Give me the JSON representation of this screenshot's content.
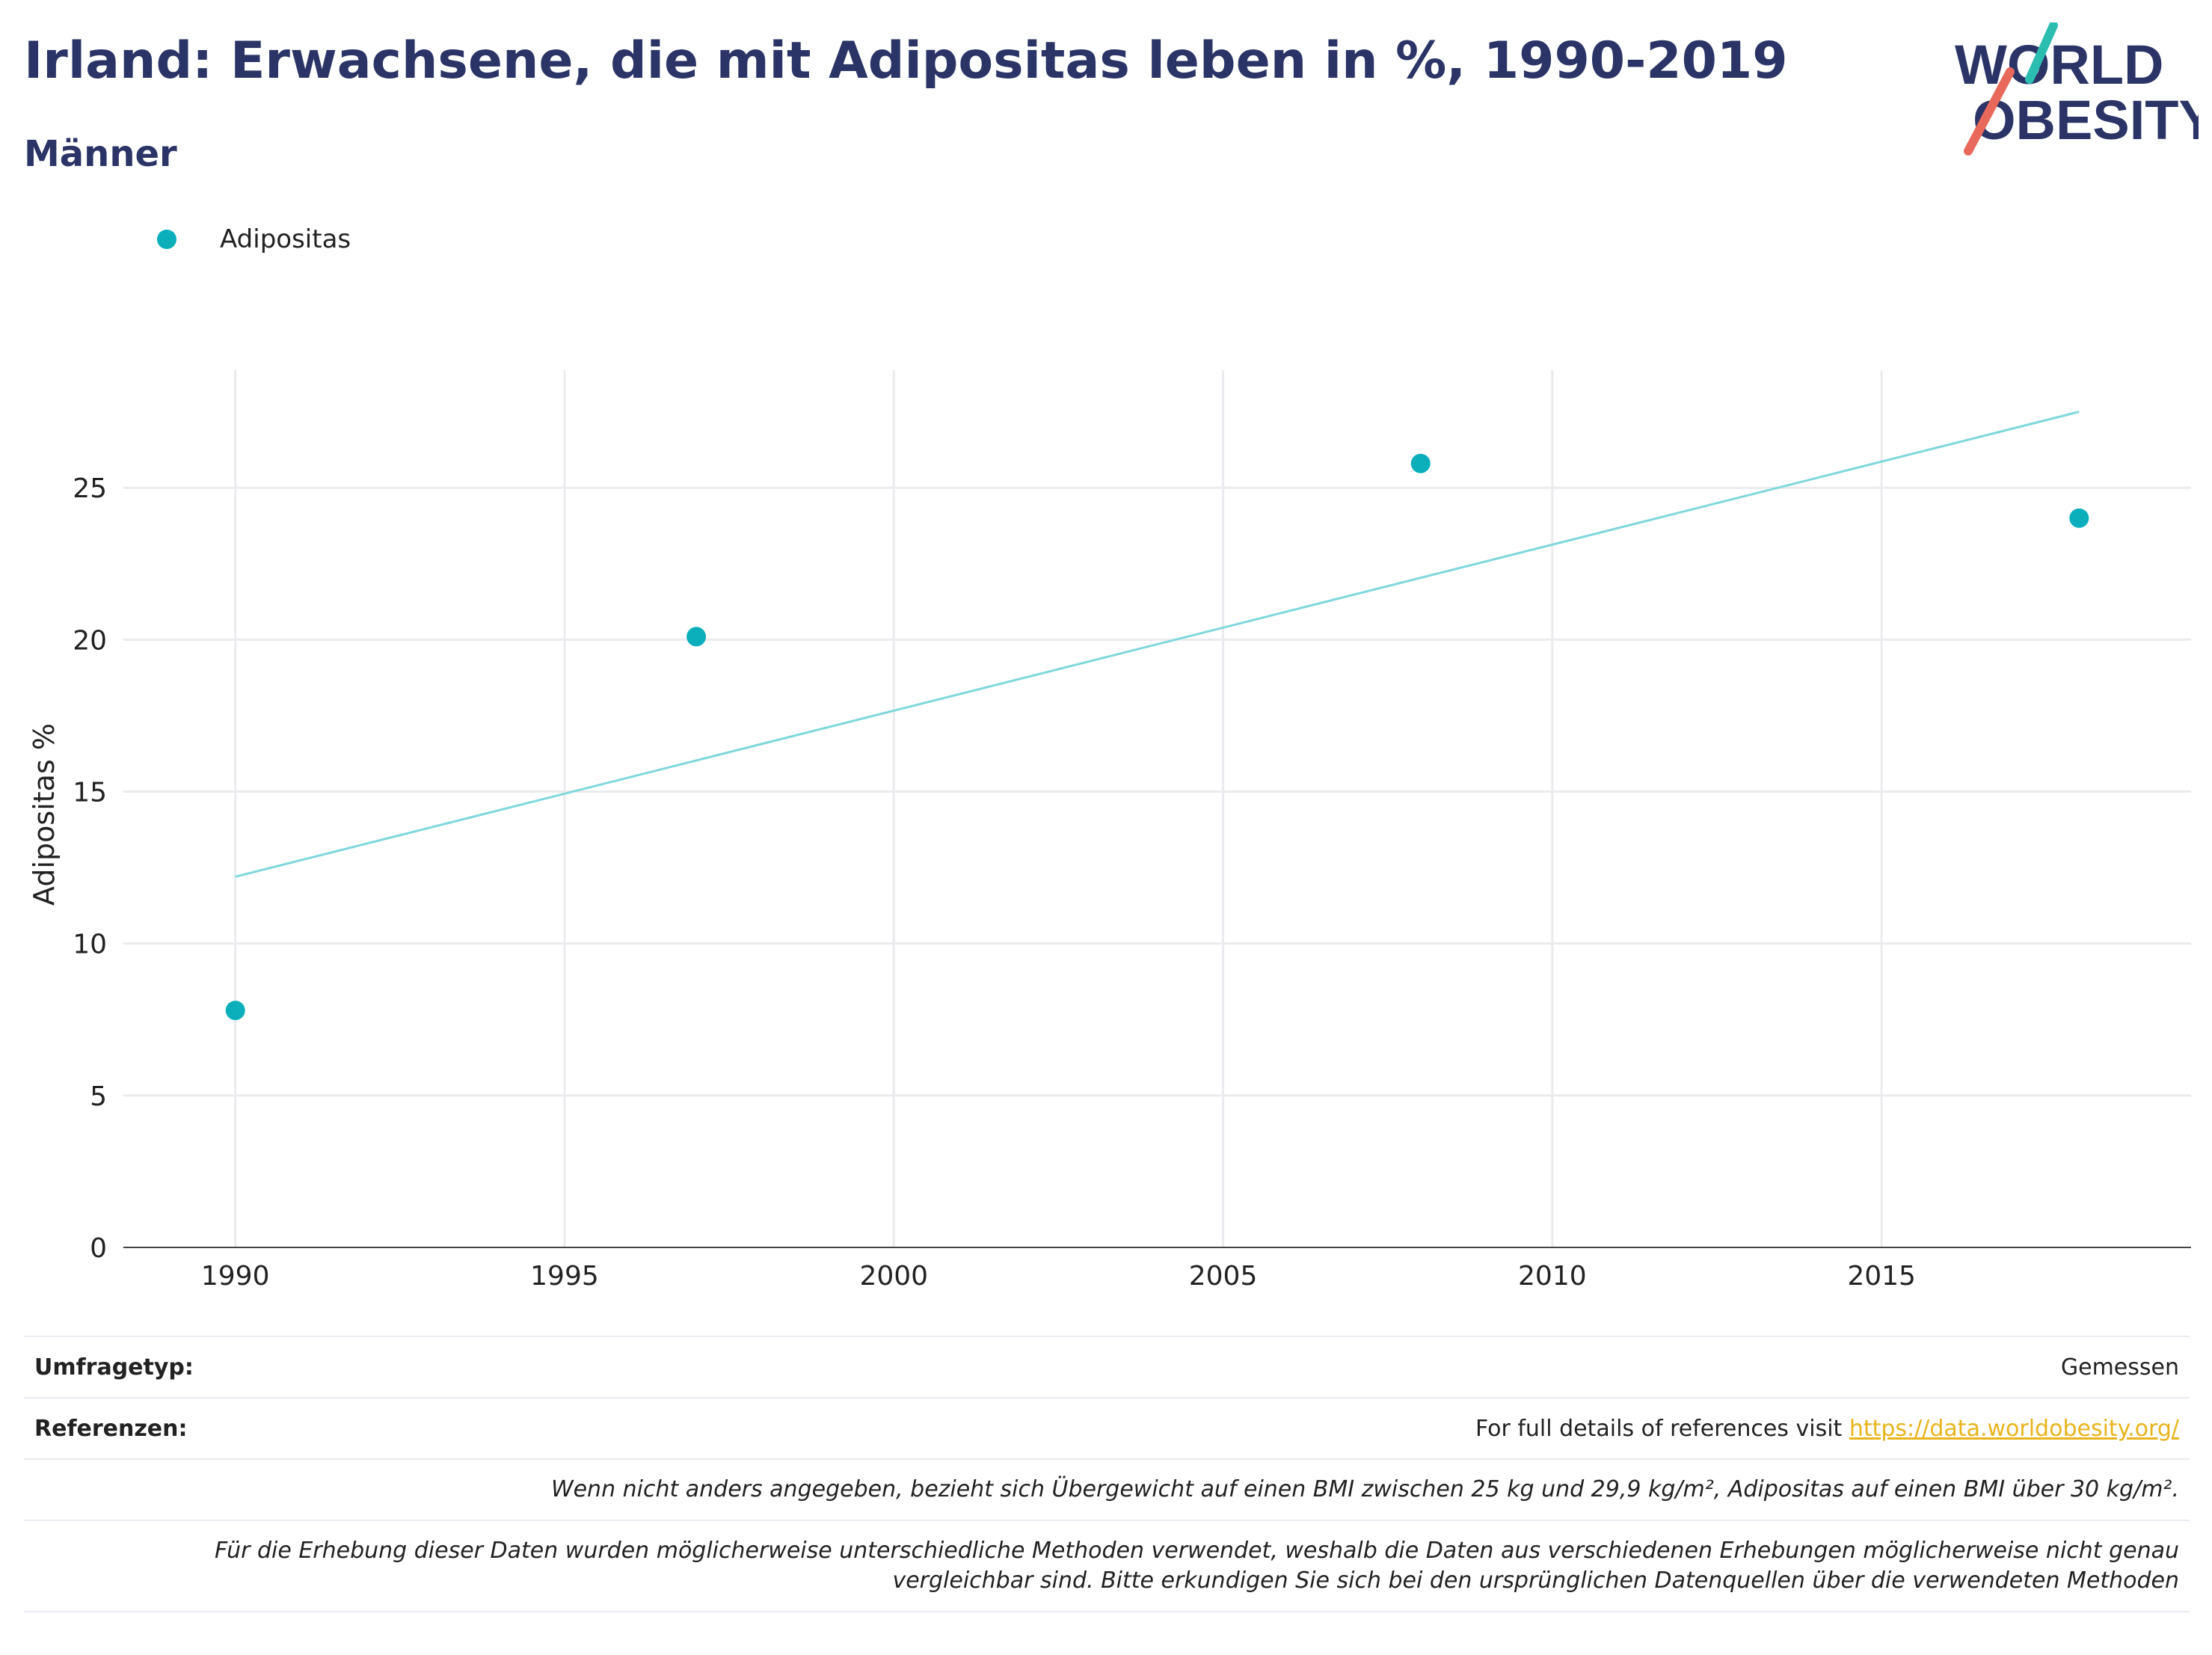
{
  "header": {
    "title": "Irland: Erwachsene, die mit Adipositas leben in %, 1990-2019",
    "subtitle": "Männer"
  },
  "logo": {
    "line1": "WORLD",
    "line2": "OBESITY",
    "accent_teal": "#2cbdb1",
    "accent_coral": "#e8695b",
    "text_color": "#2a3466"
  },
  "legend": {
    "label": "Adipositas",
    "color": "#0bafbb"
  },
  "chart_data": {
    "type": "scatter",
    "ylabel": "Adipositas %",
    "xlabel": "",
    "xlim": [
      1988.3,
      2019.7
    ],
    "ylim": [
      0,
      28.5
    ],
    "x_ticks": [
      1990,
      1995,
      2000,
      2005,
      2010,
      2015
    ],
    "y_ticks": [
      0,
      5,
      10,
      15,
      20,
      25
    ],
    "grid": true,
    "legend_position": "top-left",
    "series": [
      {
        "name": "Adipositas",
        "color": "#0bafbb",
        "points": [
          {
            "x": 1990,
            "y": 7.8
          },
          {
            "x": 1997,
            "y": 20.1
          },
          {
            "x": 2008,
            "y": 25.8
          },
          {
            "x": 2018,
            "y": 24.0
          }
        ]
      }
    ],
    "trendline": {
      "color": "#7fd7dc",
      "start": {
        "x": 1990,
        "y": 12.2
      },
      "end": {
        "x": 2018,
        "y": 27.5
      }
    }
  },
  "footer": {
    "survey_label": "Umfragetyp:",
    "survey_value": "Gemessen",
    "ref_label": "Referenzen:",
    "ref_text": "For full details of references visit ",
    "ref_link": "https://data.worldobesity.org/",
    "note1": "Wenn nicht anders angegeben, bezieht sich Übergewicht auf einen BMI zwischen 25 kg und 29,9 kg/m², Adipositas auf einen BMI über 30 kg/m².",
    "note2a": "Für die Erhebung dieser Daten wurden möglicherweise unterschiedliche Methoden verwendet, weshalb die Daten aus verschiedenen Erhebungen möglicherweise nicht genau",
    "note2b": "vergleichbar sind. Bitte erkundigen Sie sich bei den ursprünglichen Datenquellen über die verwendeten Methoden"
  }
}
